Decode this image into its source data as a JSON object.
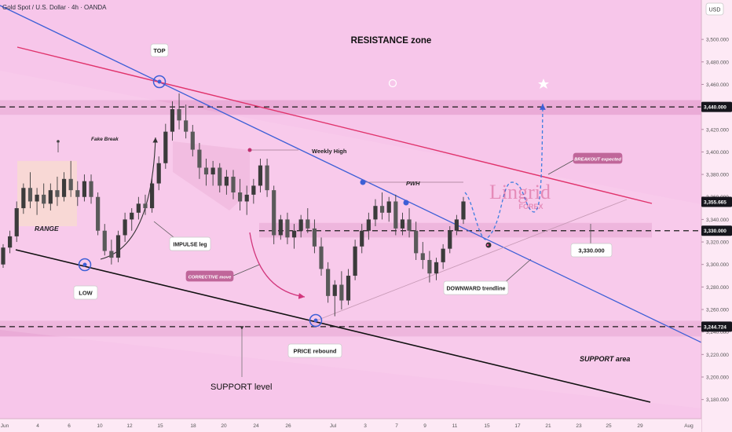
{
  "header": {
    "symbol_text": "Gold Spot / U.S. Dollar · 4h · OANDA",
    "currency": "USD"
  },
  "colors": {
    "background": "#f7c6ea",
    "zone_band": "#e6a2d0",
    "range_box": "#f7dcc8",
    "trendline_blue": "#3d5fd6",
    "resistance_line": "#e0336c",
    "support_line": "#111111",
    "candle": "#3b3b3b",
    "price_tag_dark": "#16161d",
    "label_box": "#c0669a",
    "arrow_pink": "#d2367c",
    "axis_text": "#555555"
  },
  "chart_data": {
    "type": "candlestick",
    "instrument": "Gold Spot / U.S. Dollar",
    "timeframe": "4h",
    "broker": "OANDA",
    "y_unit": "USD",
    "ylim": [
      3163,
      3535
    ],
    "y_ticks": [
      3180,
      3200,
      3220,
      3240,
      3260,
      3280,
      3300,
      3320,
      3340,
      3360,
      3380,
      3400,
      3420,
      3440,
      3460,
      3480,
      3500
    ],
    "y_tick_labels": [
      "3,180.000",
      "3,200.000",
      "3,220.000",
      "3,240.000",
      "3,260.000",
      "3,280.000",
      "3,300.000",
      "3,320.000",
      "3,340.000",
      "3,360.000",
      "3,380.000",
      "3,400.000",
      "3,420.000",
      "3,440.000",
      "3,460.000",
      "3,480.000",
      "3,500.000"
    ],
    "x_ticks": [
      "Jun",
      "4",
      "6",
      "10",
      "12",
      "15",
      "18",
      "20",
      "24",
      "26",
      "Jul",
      "3",
      "7",
      "9",
      "11",
      "15",
      "17",
      "21",
      "23",
      "25",
      "29",
      "Aug"
    ],
    "price_tags": [
      {
        "value": 3440,
        "text": "3,440.000"
      },
      {
        "value": 3355.665,
        "text": "3,355.665"
      },
      {
        "value": 3330,
        "text": "3,330.000"
      },
      {
        "value": 3244.724,
        "text": "3,244.724"
      }
    ],
    "candles_ohlc": [
      [
        3300,
        3318,
        3297,
        3315
      ],
      [
        3315,
        3330,
        3310,
        3325
      ],
      [
        3325,
        3356,
        3320,
        3350
      ],
      [
        3350,
        3372,
        3345,
        3368
      ],
      [
        3368,
        3382,
        3350,
        3356
      ],
      [
        3356,
        3368,
        3344,
        3362
      ],
      [
        3362,
        3372,
        3350,
        3354
      ],
      [
        3354,
        3372,
        3348,
        3366
      ],
      [
        3366,
        3378,
        3352,
        3360
      ],
      [
        3360,
        3382,
        3356,
        3376
      ],
      [
        3376,
        3392,
        3360,
        3366
      ],
      [
        3366,
        3374,
        3352,
        3360
      ],
      [
        3360,
        3380,
        3356,
        3374
      ],
      [
        3374,
        3380,
        3354,
        3360
      ],
      [
        3360,
        3364,
        3326,
        3330
      ],
      [
        3330,
        3336,
        3308,
        3312
      ],
      [
        3312,
        3322,
        3300,
        3306
      ],
      [
        3306,
        3330,
        3302,
        3326
      ],
      [
        3326,
        3346,
        3320,
        3340
      ],
      [
        3340,
        3350,
        3330,
        3346
      ],
      [
        3346,
        3360,
        3340,
        3354
      ],
      [
        3354,
        3362,
        3344,
        3350
      ],
      [
        3350,
        3378,
        3346,
        3372
      ],
      [
        3372,
        3396,
        3366,
        3390
      ],
      [
        3390,
        3425,
        3385,
        3418
      ],
      [
        3418,
        3445,
        3410,
        3438
      ],
      [
        3438,
        3452,
        3420,
        3428
      ],
      [
        3428,
        3442,
        3412,
        3418
      ],
      [
        3418,
        3424,
        3396,
        3402
      ],
      [
        3402,
        3408,
        3376,
        3386
      ],
      [
        3386,
        3394,
        3370,
        3380
      ],
      [
        3380,
        3392,
        3370,
        3386
      ],
      [
        3386,
        3390,
        3364,
        3370
      ],
      [
        3370,
        3384,
        3362,
        3378
      ],
      [
        3378,
        3384,
        3358,
        3364
      ],
      [
        3364,
        3376,
        3348,
        3356
      ],
      [
        3356,
        3370,
        3344,
        3362
      ],
      [
        3362,
        3376,
        3354,
        3370
      ],
      [
        3370,
        3394,
        3364,
        3388
      ],
      [
        3388,
        3394,
        3360,
        3366
      ],
      [
        3366,
        3370,
        3318,
        3326
      ],
      [
        3326,
        3344,
        3322,
        3340
      ],
      [
        3340,
        3346,
        3318,
        3324
      ],
      [
        3324,
        3336,
        3314,
        3330
      ],
      [
        3330,
        3344,
        3324,
        3340
      ],
      [
        3340,
        3350,
        3328,
        3332
      ],
      [
        3332,
        3340,
        3310,
        3316
      ],
      [
        3316,
        3324,
        3290,
        3296
      ],
      [
        3296,
        3302,
        3266,
        3272
      ],
      [
        3272,
        3286,
        3254,
        3282
      ],
      [
        3282,
        3294,
        3260,
        3268
      ],
      [
        3268,
        3296,
        3264,
        3290
      ],
      [
        3290,
        3322,
        3286,
        3316
      ],
      [
        3316,
        3336,
        3310,
        3330
      ],
      [
        3330,
        3346,
        3322,
        3340
      ],
      [
        3340,
        3358,
        3334,
        3352
      ],
      [
        3352,
        3364,
        3340,
        3346
      ],
      [
        3346,
        3360,
        3338,
        3356
      ],
      [
        3356,
        3362,
        3326,
        3332
      ],
      [
        3332,
        3346,
        3326,
        3340
      ],
      [
        3340,
        3350,
        3324,
        3330
      ],
      [
        3330,
        3338,
        3304,
        3310
      ],
      [
        3310,
        3320,
        3296,
        3304
      ],
      [
        3304,
        3312,
        3284,
        3292
      ],
      [
        3292,
        3306,
        3286,
        3302
      ],
      [
        3302,
        3318,
        3296,
        3314
      ],
      [
        3314,
        3334,
        3310,
        3330
      ],
      [
        3330,
        3344,
        3326,
        3340
      ],
      [
        3340,
        3360,
        3336,
        3356
      ]
    ],
    "price_levels": [
      {
        "name": "resistance-zone",
        "value": 3440
      },
      {
        "name": "mid-level",
        "value": 3330
      },
      {
        "name": "support-level",
        "value": 3244.724
      }
    ]
  },
  "annotations": {
    "resistance_zone": "RESISTANCE zone",
    "top": "TOP",
    "fake_break": "Fake Break",
    "weekly_high": "Weekly High",
    "pwh": "PWH",
    "range": "RANGE",
    "impulse_leg": "IMPULSE leg",
    "low": "LOW",
    "corrective_move": "CORRECTIVE move",
    "price_rebound": "PRICE rebound",
    "support_level": "SUPPORT level",
    "support_area": "SUPPORT area",
    "downward_trendline": "DOWNWARD trendline",
    "breakout_expected": "BREAKOUT expected",
    "level_callout": "3,330.000"
  },
  "watermark": {
    "brand": "Lingrid",
    "sub": "FOREX"
  }
}
